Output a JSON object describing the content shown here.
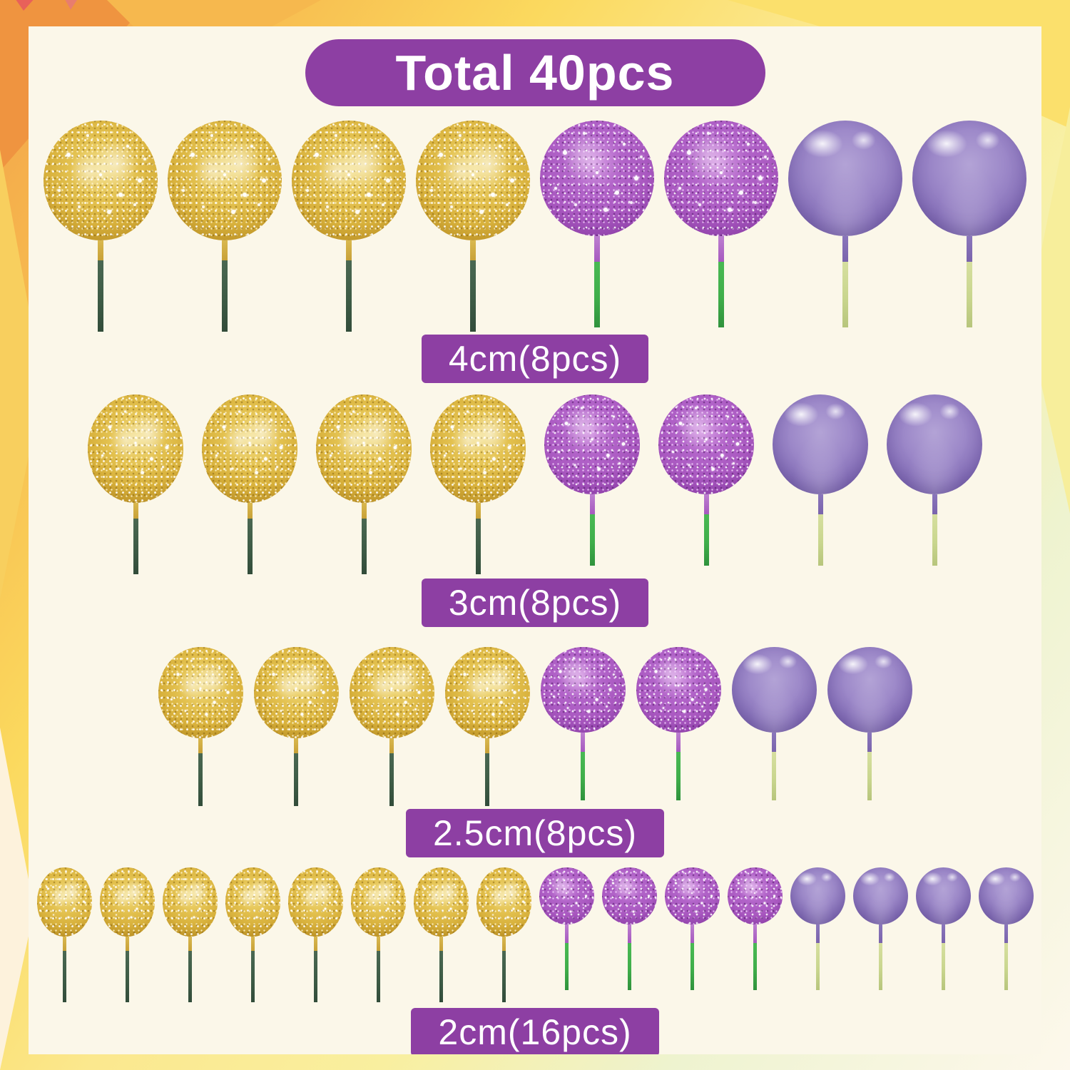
{
  "header": {
    "total_badge": "Total 40pcs"
  },
  "totals": {
    "total_pieces": 40
  },
  "rows": [
    {
      "label": "4cm(8pcs)",
      "size": "4cm",
      "pieces": 8,
      "composition": [
        {
          "type": "gold-glitter",
          "count": 4
        },
        {
          "type": "purple-glitter",
          "count": 2
        },
        {
          "type": "purple-plain",
          "count": 2
        }
      ],
      "layout": {
        "ball_w": 160,
        "ball_h": 162,
        "gold_h": 168,
        "gap": 14,
        "stick_len": 128,
        "stick_w": 8,
        "spark": 1
      }
    },
    {
      "label": "3cm(8pcs)",
      "size": "3cm",
      "pieces": 8,
      "composition": [
        {
          "type": "gold-glitter",
          "count": 4
        },
        {
          "type": "purple-glitter",
          "count": 2
        },
        {
          "type": "purple-plain",
          "count": 2
        }
      ],
      "layout": {
        "ball_w": 134,
        "ball_h": 140,
        "gold_h": 152,
        "gap": 26,
        "stick_len": 100,
        "stick_w": 7,
        "spark": 0.8
      }
    },
    {
      "label": "2.5cm(8pcs)",
      "size": "2.5cm",
      "pieces": 8,
      "composition": [
        {
          "type": "gold-glitter",
          "count": 4
        },
        {
          "type": "purple-glitter",
          "count": 2
        },
        {
          "type": "purple-plain",
          "count": 2
        }
      ],
      "layout": {
        "ball_w": 119,
        "ball_h": 120,
        "gold_h": 128,
        "gap": 15,
        "stick_len": 95,
        "stick_w": 6,
        "spark": 0.7
      }
    },
    {
      "label": "2cm(16pcs)",
      "size": "2cm",
      "pieces": 16,
      "composition": [
        {
          "type": "gold-glitter",
          "count": 8
        },
        {
          "type": "purple-glitter",
          "count": 4
        },
        {
          "type": "purple-plain",
          "count": 4
        }
      ],
      "layout": {
        "ball_w": 77,
        "ball_h": 80,
        "gold_h": 97,
        "gap": 11,
        "stick_len": 92,
        "stick_w": 5,
        "spark": 0.5
      }
    }
  ],
  "colors": {
    "badge_bg": "#8d3fa3",
    "badge_text": "#ffffff",
    "panel_bg": "#fbf7e9",
    "gold_base": "#e3c14f",
    "gold_deep": "#a87f1d",
    "purple_glitter_base": "#b264c9",
    "purple_glitter_deep": "#7c3497",
    "purple_plain_base": "#9d89c9",
    "purple_plain_deep": "#6a56a0",
    "stick_dark_green": "#3c5a44",
    "stick_bright_green": "#3fae4a",
    "stick_pale_green": "#c9d68e",
    "stick_gold": "#c8a138",
    "stick_purple_glitter": "#a659bf",
    "stick_purple": "#7a64ad",
    "border_orange": "#f2a148",
    "border_yellow": "#fbd95e",
    "border_pale_yellow": "#f9ef9f",
    "border_pale_green": "#eef3cf",
    "border_cream": "#fdf8ec",
    "border_red_accent": "#e8615a"
  }
}
